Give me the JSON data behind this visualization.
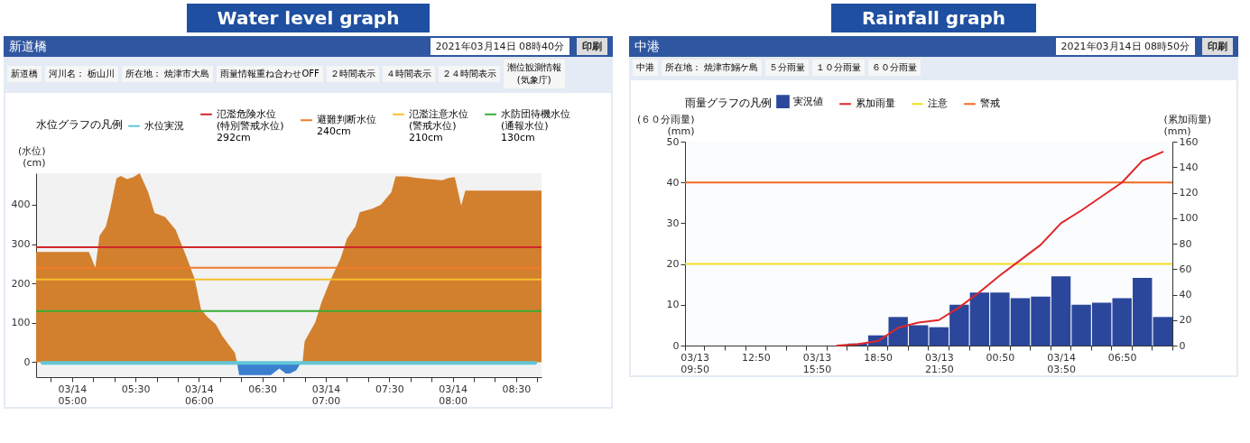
{
  "chart_data": [
    {
      "type": "area",
      "title": "Water level graph",
      "subtitle": "新道橋",
      "annotations": [
        "2021年03月14日 08時40分",
        "印刷",
        "新道橋",
        "河川名： 栃山川",
        "所在地： 焼津市大島",
        "雨量情報重ね合わせOFF",
        "２時間表示",
        "４時間表示",
        "２４時間表示",
        "潮位観測情報\n(気象庁)"
      ],
      "ylabel": "(水位)\n(cm)",
      "legend_title": "水位グラフの凡例",
      "legend": "top",
      "xlim": [
        "2021-03-14T04:43",
        "2021-03-14T08:42"
      ],
      "xticks": [
        {
          "value": "2021-03-14T04:50",
          "label": null
        },
        {
          "value": "2021-03-14T05:00",
          "label": "03/14\n05:00"
        },
        {
          "value": "2021-03-14T05:10",
          "label": null
        },
        {
          "value": "2021-03-14T05:20",
          "label": null
        },
        {
          "value": "2021-03-14T05:30",
          "label": "05:30"
        },
        {
          "value": "2021-03-14T05:40",
          "label": null
        },
        {
          "value": "2021-03-14T05:50",
          "label": null
        },
        {
          "value": "2021-03-14T06:00",
          "label": "03/14\n06:00"
        },
        {
          "value": "2021-03-14T06:10",
          "label": null
        },
        {
          "value": "2021-03-14T06:20",
          "label": null
        },
        {
          "value": "2021-03-14T06:30",
          "label": "06:30"
        },
        {
          "value": "2021-03-14T06:40",
          "label": null
        },
        {
          "value": "2021-03-14T06:50",
          "label": null
        },
        {
          "value": "2021-03-14T07:00",
          "label": "03/14\n07:00"
        },
        {
          "value": "2021-03-14T07:10",
          "label": null
        },
        {
          "value": "2021-03-14T07:20",
          "label": null
        },
        {
          "value": "2021-03-14T07:30",
          "label": "07:30"
        },
        {
          "value": "2021-03-14T07:40",
          "label": null
        },
        {
          "value": "2021-03-14T07:50",
          "label": null
        },
        {
          "value": "2021-03-14T08:00",
          "label": "03/14\n08:00"
        },
        {
          "value": "2021-03-14T08:10",
          "label": null
        },
        {
          "value": "2021-03-14T08:20",
          "label": null
        },
        {
          "value": "2021-03-14T08:30",
          "label": "08:30"
        },
        {
          "value": "2021-03-14T08:40",
          "label": null
        }
      ],
      "ylim": [
        -38,
        480
      ],
      "yticks": [
        0,
        100,
        200,
        300,
        400
      ],
      "series": [
        {
          "type": "area",
          "color": "#d2802e",
          "x": [
            "2021-03-14T04:43",
            "2021-03-14T05:08",
            "2021-03-14T05:11",
            "2021-03-14T05:13",
            "2021-03-14T05:16",
            "2021-03-14T05:18",
            "2021-03-14T05:21",
            "2021-03-14T05:23",
            "2021-03-14T05:26",
            "2021-03-14T05:29",
            "2021-03-14T05:32",
            "2021-03-14T05:36",
            "2021-03-14T05:39",
            "2021-03-14T05:44",
            "2021-03-14T05:49",
            "2021-03-14T05:54",
            "2021-03-14T05:58",
            "2021-03-14T06:01",
            "2021-03-14T06:04",
            "2021-03-14T06:08",
            "2021-03-14T06:11",
            "2021-03-14T06:14",
            "2021-03-14T06:17",
            "2021-03-14T06:18",
            "2021-03-14T06:49",
            "2021-03-14T06:50",
            "2021-03-14T06:55",
            "2021-03-14T06:58",
            "2021-03-14T07:02",
            "2021-03-14T07:07",
            "2021-03-14T07:10",
            "2021-03-14T07:14",
            "2021-03-14T07:16",
            "2021-03-14T07:22",
            "2021-03-14T07:26",
            "2021-03-14T07:31",
            "2021-03-14T07:33",
            "2021-03-14T07:38",
            "2021-03-14T07:43",
            "2021-03-14T07:55",
            "2021-03-14T07:58",
            "2021-03-14T08:01",
            "2021-03-14T08:04",
            "2021-03-14T08:06",
            "2021-03-14T08:42"
          ],
          "values": [
            280,
            280,
            240,
            321,
            345,
            388,
            467,
            473,
            465,
            470,
            480,
            432,
            379,
            369,
            336,
            269,
            211,
            134,
            115,
            96,
            67,
            45,
            24,
            0,
            0,
            53,
            101,
            153,
            206,
            264,
            314,
            345,
            381,
            390,
            400,
            432,
            472,
            472,
            468,
            462,
            468,
            470,
            398,
            436,
            436
          ]
        },
        {
          "type": "area",
          "color": "#3a7fcf",
          "x": [
            "2021-03-14T06:18",
            "2021-03-14T06:19",
            "2021-03-14T06:34",
            "2021-03-14T06:38",
            "2021-03-14T06:41",
            "2021-03-14T06:43",
            "2021-03-14T06:46",
            "2021-03-14T06:48",
            "2021-03-14T06:49"
          ],
          "values": [
            0,
            -33,
            -33,
            -16,
            -29,
            -29,
            -21,
            -3,
            0
          ]
        },
        {
          "type": "line",
          "name": "水位実況",
          "color": "#62c6d6",
          "x": [
            "2021-03-14T04:46",
            "2021-03-14T08:39"
          ],
          "values": [
            -2,
            -2
          ]
        }
      ],
      "ref_lines": [
        {
          "axis": "y",
          "value": 292,
          "label": "氾濫危険水位\n(特別警戒水位)\n292cm",
          "color": "#d0262a"
        },
        {
          "axis": "y",
          "value": 240,
          "label": "避難判断水位\n240cm",
          "color": "#f07a2a"
        },
        {
          "axis": "y",
          "value": 210,
          "label": "氾濫注意水位\n(警戒水位)\n210cm",
          "color": "#f5c02a"
        },
        {
          "axis": "y",
          "value": 130,
          "label": "水防団待機水位\n(通報水位)\n130cm",
          "color": "#3aaa35"
        }
      ]
    },
    {
      "type": "bar",
      "title": "Rainfall graph",
      "subtitle": "中港",
      "annotations": [
        "2021年03月14日 08時50分",
        "印刷",
        "中港",
        "所在地： 焼津市鰯ケ島",
        "５分雨量",
        "１０分雨量",
        "６０分雨量"
      ],
      "ylabel": "(６０分雨量)\n(mm)",
      "y2label": "(累加雨量)\n(mm)",
      "legend_title": "雨量グラフの凡例",
      "legend": "top",
      "categories": [
        "03/13\n09:50",
        null,
        null,
        "12:50",
        null,
        null,
        "03/13\n15:50",
        null,
        null,
        "18:50",
        null,
        null,
        "03/13\n21:50",
        null,
        null,
        "00:50",
        null,
        null,
        "03/14\n03:50",
        null,
        null,
        "06:50",
        null,
        null
      ],
      "ylim": [
        0,
        50
      ],
      "yticks": [
        0,
        10,
        20,
        30,
        40,
        50
      ],
      "y2lim": [
        0,
        160
      ],
      "y2ticks": [
        0,
        20,
        40,
        60,
        80,
        100,
        120,
        140,
        160
      ],
      "series": [
        {
          "type": "bar",
          "name": "実況値",
          "color": "#2b479c",
          "values": [
            0,
            0,
            0,
            0,
            0,
            0,
            0,
            0,
            0.5,
            2.5,
            7,
            5,
            4.5,
            10,
            13,
            13,
            11.6,
            12,
            17,
            10,
            10.5,
            11.6,
            16.6,
            7
          ]
        },
        {
          "type": "line",
          "name": "累加雨量",
          "axis": "y2",
          "color": "#e0262a",
          "values": [
            null,
            null,
            null,
            null,
            null,
            null,
            null,
            0,
            1,
            3.5,
            14,
            18,
            20,
            30,
            42,
            55,
            67,
            79,
            96,
            106,
            117,
            128,
            145,
            152
          ]
        }
      ],
      "ref_lines": [
        {
          "axis": "y",
          "value": 20,
          "label": "注意",
          "color": "#f0e020"
        },
        {
          "axis": "y",
          "value": 40,
          "label": "警戒",
          "color": "#f06a20"
        }
      ]
    }
  ]
}
